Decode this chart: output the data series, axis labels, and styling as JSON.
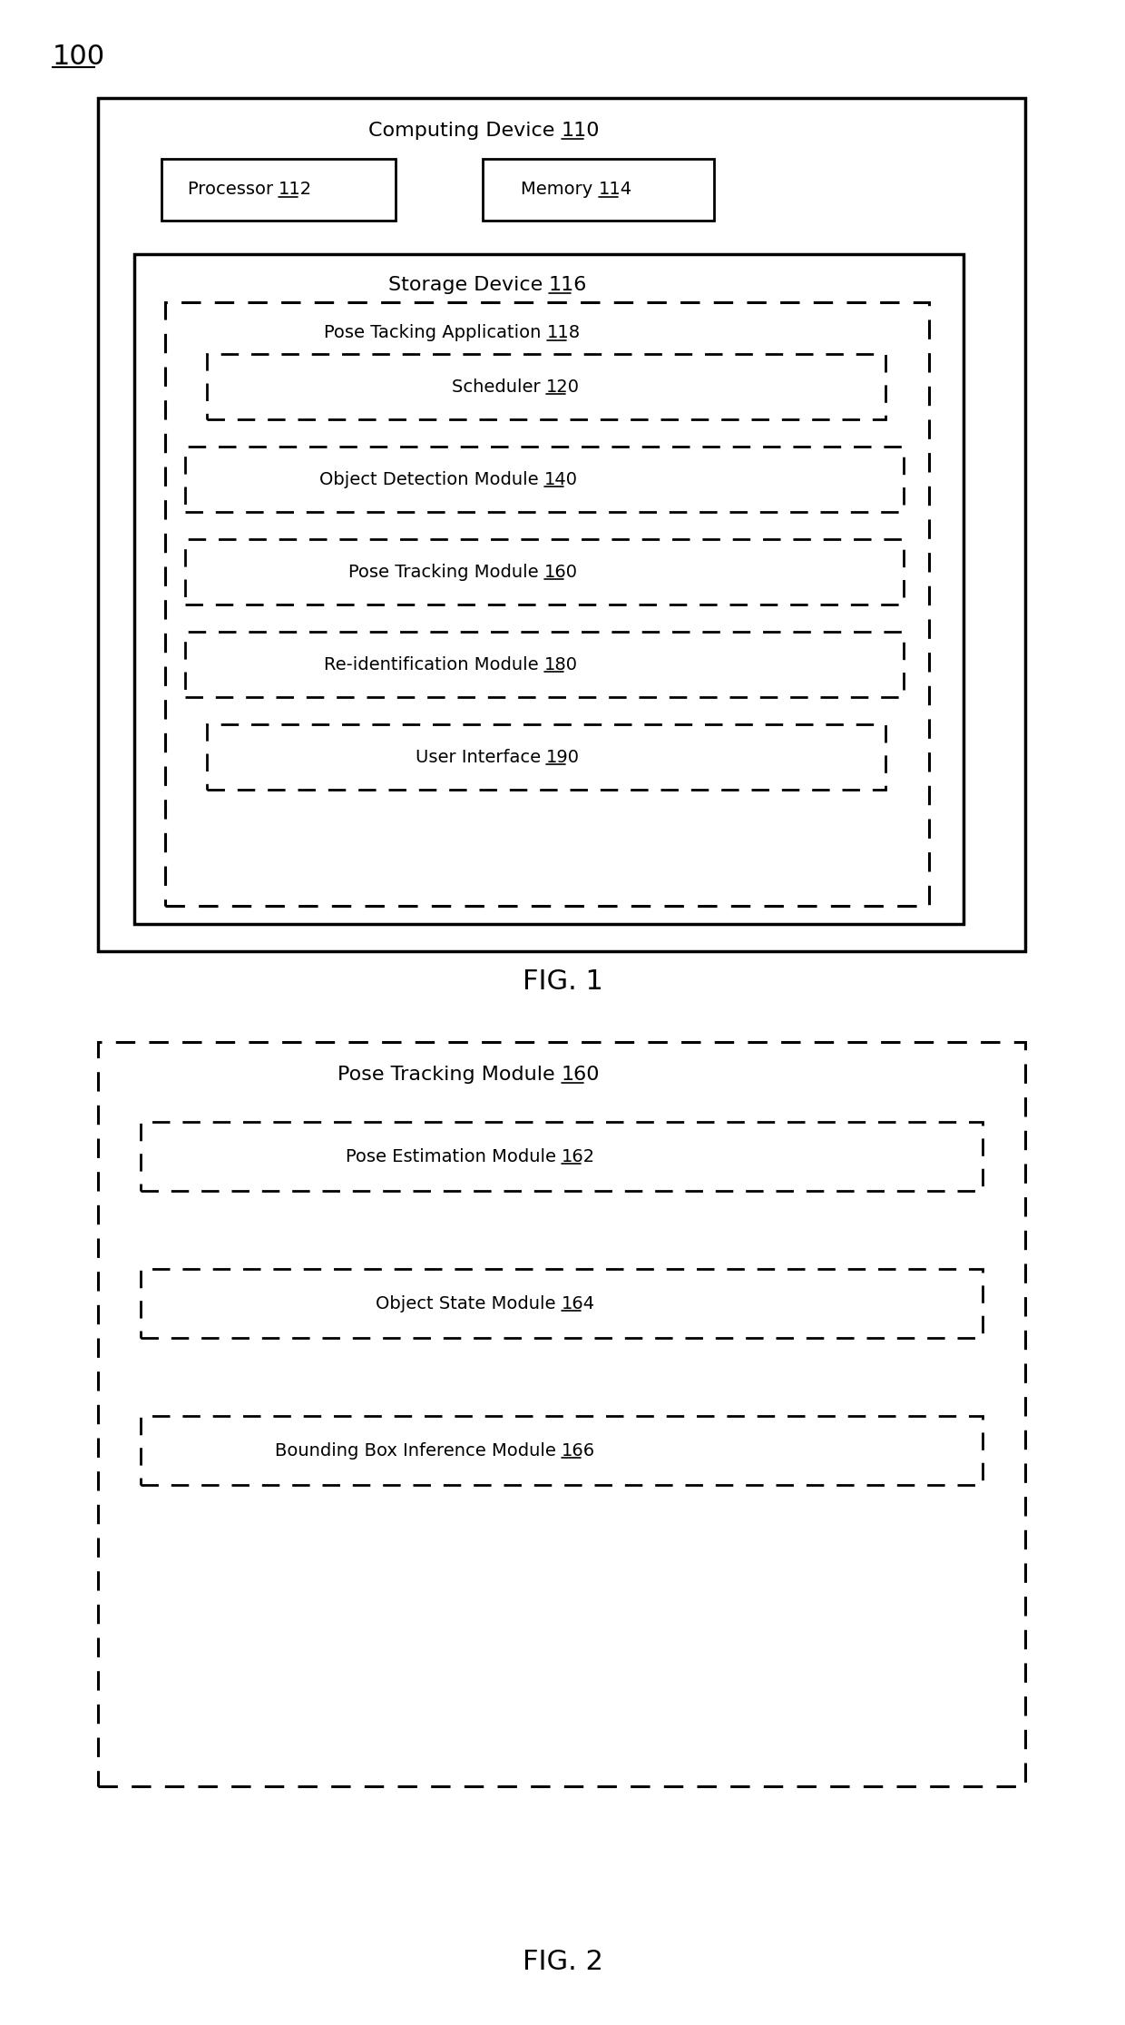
{
  "bg_color": "#ffffff",
  "fig_width": 12.4,
  "fig_height": 22.31,
  "label_100": "100",
  "fig1_label": "FIG. 1",
  "fig2_label": "FIG. 2",
  "computing_device_prefix": "Computing Device ",
  "computing_device_num": "110",
  "processor_prefix": "Processor ",
  "processor_num": "112",
  "memory_prefix": "Memory ",
  "memory_num": "114",
  "storage_device_prefix": "Storage Device ",
  "storage_device_num": "116",
  "pose_tracking_app_prefix": "Pose Tacking Application ",
  "pose_tracking_app_num": "118",
  "scheduler_prefix": "Scheduler ",
  "scheduler_num": "120",
  "obj_detection_prefix": "Object Detection Module ",
  "obj_detection_num": "140",
  "pose_tracking_prefix": "Pose Tracking Module ",
  "pose_tracking_num": "160",
  "reident_prefix": "Re-identification Module ",
  "reident_num": "180",
  "user_interface_prefix": "User Interface ",
  "user_interface_num": "190",
  "fig2_outer_prefix": "Pose Tracking Module ",
  "fig2_outer_num": "160",
  "pose_estimation_prefix": "Pose Estimation Module ",
  "pose_estimation_num": "162",
  "obj_state_prefix": "Object State Module ",
  "obj_state_num": "164",
  "bbox_inference_prefix": "Bounding Box Inference Module ",
  "bbox_inference_num": "166"
}
